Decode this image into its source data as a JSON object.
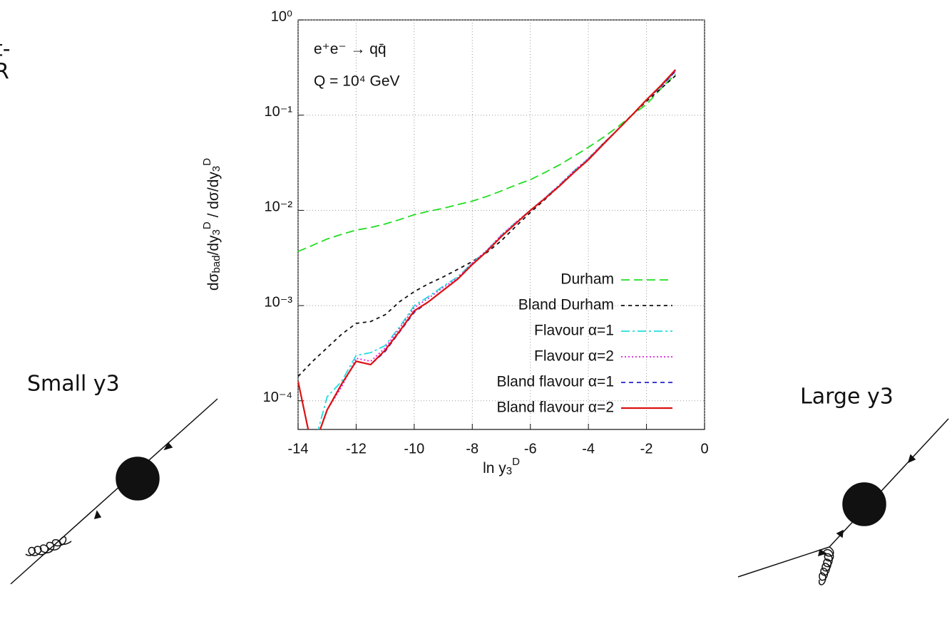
{
  "slide": {
    "fragments": [
      "t-",
      "R"
    ],
    "labels": [
      "Small y3",
      "Large y3"
    ]
  },
  "chart_data": {
    "type": "line",
    "log_y": true,
    "grid": true,
    "legend": "lower right",
    "annotations": [
      "e⁺e⁻ → qq̄",
      "Q = 10⁴ GeV"
    ],
    "ylabel": [
      {
        "t": "dσ"
      },
      {
        "t": "bad",
        "pos": "sub"
      },
      {
        "t": "/dy"
      },
      {
        "t": "3",
        "pos": "sub"
      },
      {
        "t": "D",
        "pos": "sup"
      },
      {
        "t": " / dσ/dy"
      },
      {
        "t": "3",
        "pos": "sub"
      },
      {
        "t": "D",
        "pos": "sup"
      }
    ],
    "xlabel": [
      {
        "t": "ln y"
      },
      {
        "t": "3",
        "pos": "sub"
      },
      {
        "t": "D",
        "pos": "sup"
      }
    ],
    "xlim": [
      -14,
      0
    ],
    "xticks": [
      -14,
      -12,
      -10,
      -8,
      -6,
      -4,
      -2,
      0
    ],
    "ylim": [
      5e-05,
      1
    ],
    "yticks": [
      {
        "value": 1,
        "label": "10⁰"
      },
      {
        "value": 0.1,
        "label": "10⁻¹"
      },
      {
        "value": 0.01,
        "label": "10⁻²"
      },
      {
        "value": 0.001,
        "label": "10⁻³"
      },
      {
        "value": 0.0001,
        "label": "10⁻⁴"
      }
    ],
    "x": [
      -14,
      -13.5,
      -13,
      -12.5,
      -12,
      -11.5,
      -11,
      -10.5,
      -10,
      -9.5,
      -9,
      -8.5,
      -8,
      -7.5,
      -7,
      -6.5,
      -6,
      -5.5,
      -5,
      -4.5,
      -4,
      -3.5,
      -3,
      -2.5,
      -2,
      -1.5,
      -1
    ],
    "series": [
      {
        "name": "Durham",
        "color": "#22dd22",
        "dash": "12,6",
        "values": [
          0.0037,
          0.0043,
          0.005,
          0.0056,
          0.0062,
          0.0066,
          0.0072,
          0.008,
          0.009,
          0.0098,
          0.0105,
          0.0115,
          0.0125,
          0.014,
          0.016,
          0.0185,
          0.021,
          0.025,
          0.03,
          0.037,
          0.046,
          0.058,
          0.075,
          0.1,
          0.13,
          0.19,
          0.27
        ]
      },
      {
        "name": "Bland Durham",
        "color": "#111111",
        "dash": "5,5",
        "values": [
          0.00018,
          0.00026,
          0.00036,
          0.0005,
          0.00065,
          0.00068,
          0.0008,
          0.0011,
          0.0014,
          0.0017,
          0.002,
          0.0024,
          0.0029,
          0.0036,
          0.0048,
          0.0068,
          0.0095,
          0.013,
          0.018,
          0.025,
          0.035,
          0.05,
          0.07,
          0.1,
          0.14,
          0.19,
          0.26
        ]
      },
      {
        "name": "Flavour α=1",
        "color": "#22dddd",
        "dash": "12,4,3,4",
        "values": [
          null,
          3e-05,
          0.00011,
          0.00016,
          0.0003,
          0.00032,
          0.00038,
          0.0006,
          0.001,
          0.00125,
          0.0016,
          0.002,
          0.0028,
          0.0038,
          0.0055,
          0.0075,
          0.01,
          0.0135,
          0.0185,
          0.026,
          0.035,
          0.05,
          0.07,
          0.1,
          0.145,
          0.2,
          0.29
        ]
      },
      {
        "name": "Flavour α=2",
        "color": "#dd22dd",
        "dash": "2,3",
        "values": [
          null,
          3e-05,
          8e-05,
          0.00014,
          0.00028,
          0.00026,
          0.00036,
          0.00058,
          0.00095,
          0.0012,
          0.00155,
          0.00195,
          0.0028,
          0.0038,
          0.0055,
          0.0075,
          0.01,
          0.0135,
          0.0185,
          0.026,
          0.035,
          0.05,
          0.07,
          0.1,
          0.145,
          0.2,
          0.29
        ]
      },
      {
        "name": "Bland flavour α=1",
        "color": "#2222cc",
        "dash": "6,5",
        "values": [
          null,
          3e-05,
          8e-05,
          0.00015,
          0.00026,
          0.00024,
          0.00033,
          0.00053,
          0.00085,
          0.0011,
          0.00145,
          0.0019,
          0.0027,
          0.0037,
          0.0053,
          0.0073,
          0.01,
          0.0133,
          0.018,
          0.025,
          0.034,
          0.049,
          0.07,
          0.1,
          0.145,
          0.2,
          0.29
        ]
      },
      {
        "name": "Bland flavour α=2",
        "color": "#dd1111",
        "dash": "",
        "values": [
          0.00016,
          3e-05,
          8e-05,
          0.00015,
          0.00026,
          0.00024,
          0.00034,
          0.00054,
          0.00088,
          0.0011,
          0.00145,
          0.0019,
          0.0027,
          0.0037,
          0.0053,
          0.0073,
          0.01,
          0.0133,
          0.018,
          0.025,
          0.034,
          0.049,
          0.07,
          0.1,
          0.145,
          0.205,
          0.3
        ]
      }
    ]
  }
}
